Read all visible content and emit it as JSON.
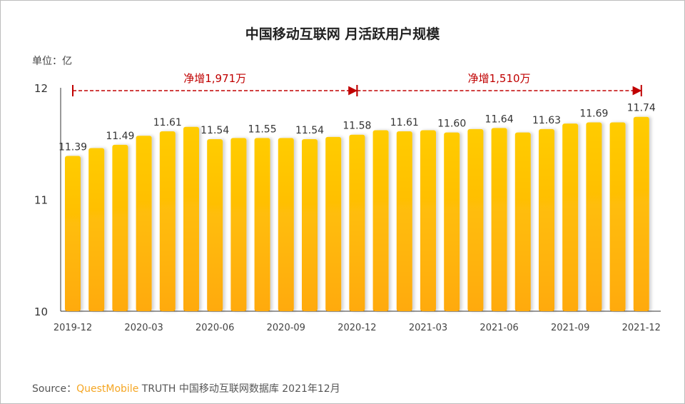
{
  "chart_data": {
    "type": "bar",
    "title": "中国移动互联网 月活跃用户规模",
    "unit_label": "单位：亿",
    "categories": [
      "2019-12",
      "2020-01",
      "2020-02",
      "2020-03",
      "2020-04",
      "2020-05",
      "2020-06",
      "2020-07",
      "2020-08",
      "2020-09",
      "2020-10",
      "2020-11",
      "2020-12",
      "2021-01",
      "2021-02",
      "2021-03",
      "2021-04",
      "2021-05",
      "2021-06",
      "2021-07",
      "2021-08",
      "2021-09",
      "2021-10",
      "2021-11",
      "2021-12"
    ],
    "values": [
      11.39,
      11.46,
      11.49,
      11.57,
      11.61,
      11.65,
      11.54,
      11.55,
      11.55,
      11.55,
      11.54,
      11.56,
      11.58,
      11.62,
      11.61,
      11.62,
      11.6,
      11.63,
      11.64,
      11.6,
      11.63,
      11.68,
      11.69,
      11.69,
      11.74
    ],
    "data_labels": {
      "0": "11.39",
      "2": "11.49",
      "4": "11.61",
      "6": "11.54",
      "8": "11.55",
      "10": "11.54",
      "12": "11.58",
      "14": "11.61",
      "16": "11.60",
      "18": "11.64",
      "20": "11.63",
      "22": "11.69",
      "24": "11.74"
    },
    "x_tick_labels": [
      "2019-12",
      "2020-03",
      "2020-06",
      "2020-09",
      "2020-12",
      "2021-03",
      "2021-06",
      "2021-09",
      "2021-12"
    ],
    "y_ticks": [
      "10",
      "11",
      "12"
    ],
    "ylim": [
      10,
      12
    ],
    "grid": false,
    "annotations": [
      {
        "text": "净增1,971万",
        "from": "2019-12",
        "to": "2020-12"
      },
      {
        "text": "净增1,510万",
        "from": "2020-12",
        "to": "2021-12"
      }
    ],
    "colors": {
      "bar_top": "#FFCC00",
      "bar_bottom": "#FFAA10",
      "annotation": "#C00000"
    }
  },
  "source": {
    "prefix": "Source：",
    "brand": "QuestMobile",
    "rest": " TRUTH 中国移动互联网数据库 2021年12月"
  }
}
